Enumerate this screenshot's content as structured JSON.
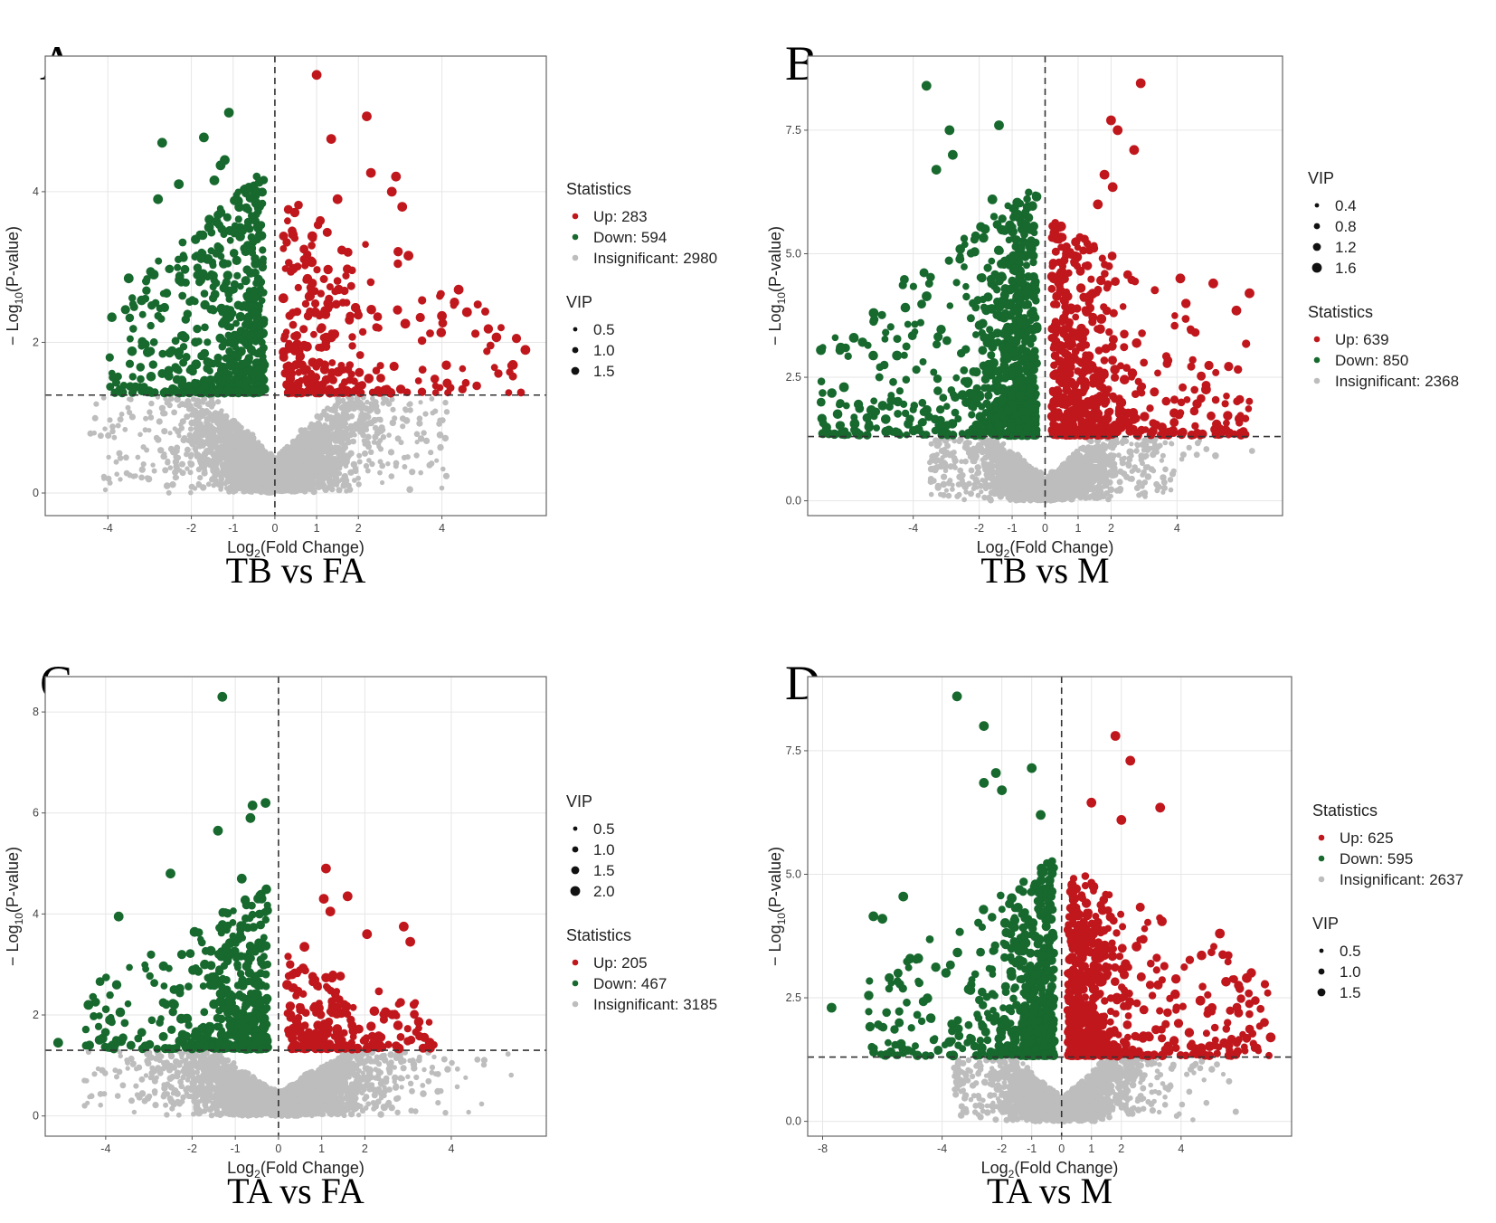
{
  "figure": {
    "background": "#ffffff",
    "colors": {
      "up": "#c0171d",
      "down": "#17692e",
      "insignificant": "#bdbdbd",
      "grid": "#e6e6e6",
      "threshold": "#333333"
    }
  },
  "chart_data": [
    {
      "type": "scatter",
      "panel": "A",
      "title": "TB vs FA",
      "xlabel_main": "Log",
      "xlabel_sub": "2",
      "xlabel_rest": "(Fold Change)",
      "ylabel_main": "− Log",
      "ylabel_sub": "10",
      "ylabel_rest": "(P-value)",
      "xlim": [
        -5.5,
        6.5
      ],
      "ylim": [
        -0.3,
        5.8
      ],
      "xticks": [
        {
          "v": -4,
          "label": "-4"
        },
        {
          "v": -2,
          "label": "-2"
        },
        {
          "v": -1,
          "label": "-1"
        },
        {
          "v": 0,
          "label": "0"
        },
        {
          "v": 1,
          "label": "1"
        },
        {
          "v": 2,
          "label": "2"
        },
        {
          "v": 4,
          "label": "4"
        }
      ],
      "yticks": [
        {
          "v": 0,
          "label": "0"
        },
        {
          "v": 2,
          "label": "2"
        },
        {
          "v": 4,
          "label": "4"
        }
      ],
      "threshold_y": 1.3,
      "legend_order": [
        "statistics",
        "vip"
      ],
      "statistics_title": "Statistics",
      "statistics": [
        {
          "key": "up",
          "label": "Up: 283"
        },
        {
          "key": "down",
          "label": "Down: 594"
        },
        {
          "key": "insignificant",
          "label": "Insignificant: 2980"
        }
      ],
      "vip_title": "VIP",
      "vip": [
        "0.5",
        "1.0",
        "1.5"
      ],
      "counts": {
        "up": 283,
        "down": 594,
        "insignificant": 2980
      },
      "shape": {
        "down_xmin": -4.0,
        "up_xmax": 6.0,
        "ns_xmin": -4.5,
        "ns_xmax": 4.2,
        "maxy_down": 4.4,
        "maxy_up": 4.0
      },
      "highlights": [
        {
          "x": 1.0,
          "y": 5.55,
          "g": "up"
        },
        {
          "x": 2.2,
          "y": 5.0,
          "g": "up"
        },
        {
          "x": 1.35,
          "y": 4.7,
          "g": "up"
        },
        {
          "x": 2.3,
          "y": 4.25,
          "g": "up"
        },
        {
          "x": 2.9,
          "y": 4.2,
          "g": "up"
        },
        {
          "x": 2.8,
          "y": 4.0,
          "g": "up"
        },
        {
          "x": 3.05,
          "y": 3.8,
          "g": "up"
        },
        {
          "x": 4.4,
          "y": 2.7,
          "g": "up"
        },
        {
          "x": 4.0,
          "y": 2.35,
          "g": "up"
        },
        {
          "x": 4.6,
          "y": 2.4,
          "g": "up"
        },
        {
          "x": 6.0,
          "y": 1.9,
          "g": "up"
        },
        {
          "x": 5.7,
          "y": 1.7,
          "g": "up"
        },
        {
          "x": 1.5,
          "y": 3.9,
          "g": "up"
        },
        {
          "x": 3.2,
          "y": 3.15,
          "g": "up"
        },
        {
          "x": -1.1,
          "y": 5.05,
          "g": "down"
        },
        {
          "x": -1.7,
          "y": 4.72,
          "g": "down"
        },
        {
          "x": -2.7,
          "y": 4.65,
          "g": "down"
        },
        {
          "x": -1.2,
          "y": 4.42,
          "g": "down"
        },
        {
          "x": -1.3,
          "y": 4.35,
          "g": "down"
        },
        {
          "x": -2.3,
          "y": 4.1,
          "g": "down"
        },
        {
          "x": -1.45,
          "y": 4.15,
          "g": "down"
        },
        {
          "x": -2.8,
          "y": 3.9,
          "g": "down"
        },
        {
          "x": -3.5,
          "y": 2.85,
          "g": "down"
        },
        {
          "x": -2.9,
          "y": 2.9,
          "g": "down"
        },
        {
          "x": -0.45,
          "y": 3.85,
          "g": "down"
        }
      ]
    },
    {
      "type": "scatter",
      "panel": "B",
      "title": "TB vs M",
      "xlabel_main": "Log",
      "xlabel_sub": "2",
      "xlabel_rest": "(Fold Change)",
      "ylabel_main": "− Log",
      "ylabel_sub": "10",
      "ylabel_rest": "(P-value)",
      "xlim": [
        -7.2,
        7.2
      ],
      "ylim": [
        -0.3,
        9.0
      ],
      "xticks": [
        {
          "v": -4,
          "label": "-4"
        },
        {
          "v": -2,
          "label": "-2"
        },
        {
          "v": -1,
          "label": "-1"
        },
        {
          "v": 0,
          "label": "0"
        },
        {
          "v": 1,
          "label": "1"
        },
        {
          "v": 2,
          "label": "2"
        },
        {
          "v": 4,
          "label": "4"
        }
      ],
      "yticks": [
        {
          "v": 0,
          "label": "0.0"
        },
        {
          "v": 2.5,
          "label": "2.5"
        },
        {
          "v": 5,
          "label": "5.0"
        },
        {
          "v": 7.5,
          "label": "7.5"
        }
      ],
      "threshold_y": 1.3,
      "legend_order": [
        "vip",
        "statistics"
      ],
      "statistics_title": "Statistics",
      "statistics": [
        {
          "key": "up",
          "label": "Up: 639"
        },
        {
          "key": "down",
          "label": "Down: 850"
        },
        {
          "key": "insignificant",
          "label": "Insignificant: 2368"
        }
      ],
      "vip_title": "VIP",
      "vip": [
        "0.4",
        "0.8",
        "1.2",
        "1.6"
      ],
      "counts": {
        "up": 639,
        "down": 850,
        "insignificant": 2368
      },
      "shape": {
        "down_xmin": -6.8,
        "up_xmax": 6.2,
        "ns_xmin": -3.5,
        "ns_xmax": 6.6,
        "maxy_down": 6.5,
        "maxy_up": 5.8
      },
      "highlights": [
        {
          "x": 2.9,
          "y": 8.45,
          "g": "up"
        },
        {
          "x": 2.0,
          "y": 7.7,
          "g": "up"
        },
        {
          "x": 2.7,
          "y": 7.1,
          "g": "up"
        },
        {
          "x": 2.2,
          "y": 7.5,
          "g": "up"
        },
        {
          "x": 1.8,
          "y": 6.6,
          "g": "up"
        },
        {
          "x": 2.05,
          "y": 6.35,
          "g": "up"
        },
        {
          "x": 1.6,
          "y": 6.0,
          "g": "up"
        },
        {
          "x": 6.2,
          "y": 4.2,
          "g": "up"
        },
        {
          "x": 5.8,
          "y": 3.85,
          "g": "up"
        },
        {
          "x": 4.1,
          "y": 4.5,
          "g": "up"
        },
        {
          "x": 5.1,
          "y": 4.4,
          "g": "up"
        },
        {
          "x": -3.6,
          "y": 8.4,
          "g": "down"
        },
        {
          "x": -1.4,
          "y": 7.6,
          "g": "down"
        },
        {
          "x": -2.9,
          "y": 7.5,
          "g": "down"
        },
        {
          "x": -2.8,
          "y": 7.0,
          "g": "down"
        },
        {
          "x": -3.3,
          "y": 6.7,
          "g": "down"
        },
        {
          "x": -6.8,
          "y": 3.05,
          "g": "down"
        },
        {
          "x": -6.2,
          "y": 3.1,
          "g": "down"
        },
        {
          "x": -5.8,
          "y": 3.3,
          "g": "down"
        },
        {
          "x": -6.1,
          "y": 2.3,
          "g": "down"
        },
        {
          "x": -5.2,
          "y": 3.8,
          "g": "down"
        },
        {
          "x": -1.6,
          "y": 6.1,
          "g": "down"
        }
      ]
    },
    {
      "type": "scatter",
      "panel": "C",
      "title": "TA vs FA",
      "xlabel_main": "Log",
      "xlabel_sub": "2",
      "xlabel_rest": "(Fold Change)",
      "ylabel_main": "− Log",
      "ylabel_sub": "10",
      "ylabel_rest": "(P-value)",
      "xlim": [
        -5.4,
        6.2
      ],
      "ylim": [
        -0.4,
        8.7
      ],
      "xticks": [
        {
          "v": -4,
          "label": "-4"
        },
        {
          "v": -2,
          "label": "-2"
        },
        {
          "v": -1,
          "label": "-1"
        },
        {
          "v": 0,
          "label": "0"
        },
        {
          "v": 1,
          "label": "1"
        },
        {
          "v": 2,
          "label": "2"
        },
        {
          "v": 4,
          "label": "4"
        }
      ],
      "yticks": [
        {
          "v": 0,
          "label": "0"
        },
        {
          "v": 2,
          "label": "2"
        },
        {
          "v": 4,
          "label": "4"
        },
        {
          "v": 6,
          "label": "6"
        },
        {
          "v": 8,
          "label": "8"
        }
      ],
      "threshold_y": 1.3,
      "legend_order": [
        "vip",
        "statistics"
      ],
      "statistics_title": "Statistics",
      "statistics": [
        {
          "key": "up",
          "label": "Up: 205"
        },
        {
          "key": "down",
          "label": "Down: 467"
        },
        {
          "key": "insignificant",
          "label": "Insignificant: 3185"
        }
      ],
      "vip_title": "VIP",
      "vip": [
        "0.5",
        "1.0",
        "1.5",
        "2.0"
      ],
      "counts": {
        "up": 205,
        "down": 467,
        "insignificant": 3185
      },
      "shape": {
        "down_xmin": -4.5,
        "up_xmax": 3.6,
        "ns_xmin": -4.6,
        "ns_xmax": 5.8,
        "maxy_down": 4.6,
        "maxy_up": 3.2
      },
      "highlights": [
        {
          "x": -1.3,
          "y": 8.3,
          "g": "down"
        },
        {
          "x": -0.3,
          "y": 6.2,
          "g": "down"
        },
        {
          "x": -0.6,
          "y": 6.15,
          "g": "down"
        },
        {
          "x": -0.65,
          "y": 5.9,
          "g": "down"
        },
        {
          "x": -1.4,
          "y": 5.65,
          "g": "down"
        },
        {
          "x": -2.5,
          "y": 4.8,
          "g": "down"
        },
        {
          "x": -5.1,
          "y": 1.45,
          "g": "down"
        },
        {
          "x": -4.4,
          "y": 2.2,
          "g": "down"
        },
        {
          "x": -3.7,
          "y": 3.95,
          "g": "down"
        },
        {
          "x": -3.9,
          "y": 1.9,
          "g": "down"
        },
        {
          "x": -0.85,
          "y": 4.7,
          "g": "down"
        },
        {
          "x": 1.1,
          "y": 4.9,
          "g": "up"
        },
        {
          "x": 1.05,
          "y": 4.3,
          "g": "up"
        },
        {
          "x": 1.6,
          "y": 4.35,
          "g": "up"
        },
        {
          "x": 1.2,
          "y": 4.05,
          "g": "up"
        },
        {
          "x": 2.9,
          "y": 3.75,
          "g": "up"
        },
        {
          "x": 3.05,
          "y": 3.45,
          "g": "up"
        },
        {
          "x": 2.05,
          "y": 3.6,
          "g": "up"
        },
        {
          "x": 0.6,
          "y": 3.35,
          "g": "up"
        },
        {
          "x": 3.5,
          "y": 1.45,
          "g": "up"
        }
      ]
    },
    {
      "type": "scatter",
      "panel": "D",
      "title": "TA vs M",
      "xlabel_main": "Log",
      "xlabel_sub": "2",
      "xlabel_rest": "(Fold Change)",
      "ylabel_main": "− Log",
      "ylabel_sub": "10",
      "ylabel_rest": "(P-value)",
      "xlim": [
        -8.5,
        7.7
      ],
      "ylim": [
        -0.3,
        9.0
      ],
      "xticks": [
        {
          "v": -8,
          "label": "-8"
        },
        {
          "v": -4,
          "label": "-4"
        },
        {
          "v": -2,
          "label": "-2"
        },
        {
          "v": -1,
          "label": "-1"
        },
        {
          "v": 0,
          "label": "0"
        },
        {
          "v": 1,
          "label": "1"
        },
        {
          "v": 2,
          "label": "2"
        },
        {
          "v": 4,
          "label": "4"
        }
      ],
      "yticks": [
        {
          "v": 0,
          "label": "0.0"
        },
        {
          "v": 2.5,
          "label": "2.5"
        },
        {
          "v": 5,
          "label": "5.0"
        },
        {
          "v": 7.5,
          "label": "7.5"
        }
      ],
      "threshold_y": 1.3,
      "legend_order": [
        "statistics",
        "vip"
      ],
      "statistics_title": "Statistics",
      "statistics": [
        {
          "key": "up",
          "label": "Up: 625"
        },
        {
          "key": "down",
          "label": "Down: 595"
        },
        {
          "key": "insignificant",
          "label": "Insignificant: 2637"
        }
      ],
      "vip_title": "VIP",
      "vip": [
        "0.5",
        "1.0",
        "1.5"
      ],
      "counts": {
        "up": 625,
        "down": 595,
        "insignificant": 2637
      },
      "shape": {
        "down_xmin": -6.5,
        "up_xmax": 7.0,
        "ns_xmin": -3.6,
        "ns_xmax": 6.6,
        "maxy_down": 5.4,
        "maxy_up": 5.2
      },
      "highlights": [
        {
          "x": -3.5,
          "y": 8.6,
          "g": "down"
        },
        {
          "x": -2.6,
          "y": 8.0,
          "g": "down"
        },
        {
          "x": -1.0,
          "y": 7.15,
          "g": "down"
        },
        {
          "x": -2.2,
          "y": 7.05,
          "g": "down"
        },
        {
          "x": -2.6,
          "y": 6.85,
          "g": "down"
        },
        {
          "x": -2.0,
          "y": 6.7,
          "g": "down"
        },
        {
          "x": -0.7,
          "y": 6.2,
          "g": "down"
        },
        {
          "x": -7.7,
          "y": 2.3,
          "g": "down"
        },
        {
          "x": -6.3,
          "y": 4.15,
          "g": "down"
        },
        {
          "x": -6.0,
          "y": 4.1,
          "g": "down"
        },
        {
          "x": -5.3,
          "y": 4.55,
          "g": "down"
        },
        {
          "x": -4.8,
          "y": 3.3,
          "g": "down"
        },
        {
          "x": 1.8,
          "y": 7.8,
          "g": "up"
        },
        {
          "x": 2.3,
          "y": 7.3,
          "g": "up"
        },
        {
          "x": 1.0,
          "y": 6.45,
          "g": "up"
        },
        {
          "x": 3.3,
          "y": 6.35,
          "g": "up"
        },
        {
          "x": 2.0,
          "y": 6.1,
          "g": "up"
        },
        {
          "x": 7.0,
          "y": 1.7,
          "g": "up"
        },
        {
          "x": 6.2,
          "y": 2.9,
          "g": "up"
        },
        {
          "x": 5.3,
          "y": 3.8,
          "g": "up"
        }
      ]
    }
  ]
}
